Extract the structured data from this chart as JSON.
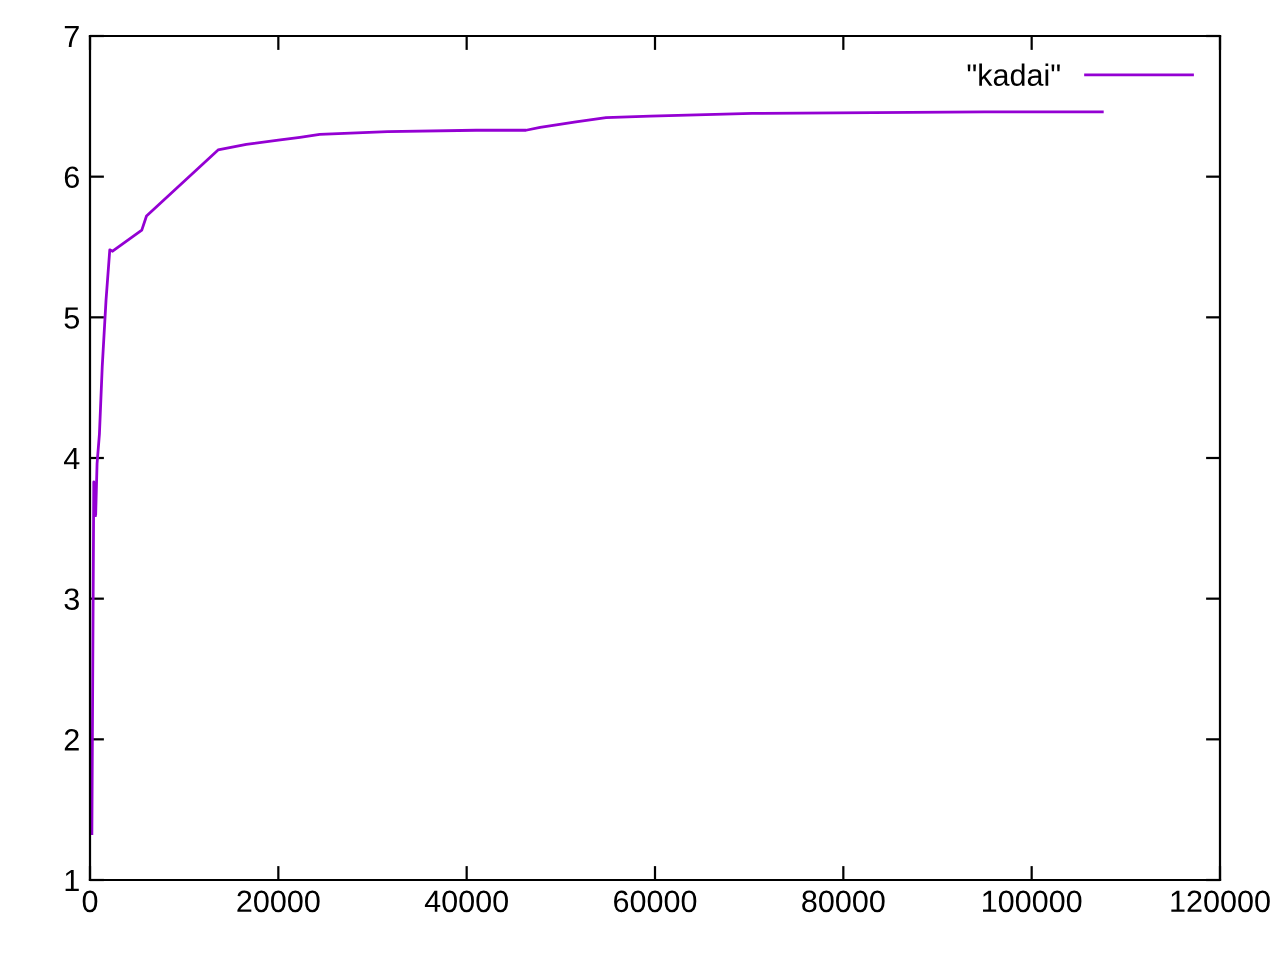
{
  "chart_data": {
    "type": "line",
    "x": [
      200,
      400,
      600,
      750,
      1000,
      1300,
      1700,
      2100,
      2400,
      5500,
      6000,
      13600,
      16600,
      20000,
      22300,
      24400,
      31600,
      41000,
      46300,
      47800,
      51600,
      54800,
      59500,
      70300,
      95000,
      107500
    ],
    "series": [
      {
        "name": "\"kadai\"",
        "color": "#9400d3",
        "values": [
          1.33,
          3.83,
          3.59,
          3.96,
          4.17,
          4.65,
          5.12,
          5.48,
          5.47,
          5.62,
          5.72,
          6.19,
          6.23,
          6.26,
          6.28,
          6.3,
          6.32,
          6.33,
          6.33,
          6.35,
          6.39,
          6.42,
          6.43,
          6.45,
          6.46,
          6.46
        ]
      }
    ],
    "xlim": [
      0,
      120000
    ],
    "ylim": [
      1,
      7
    ],
    "xticks": [
      0,
      20000,
      40000,
      60000,
      80000,
      100000,
      120000
    ],
    "yticks": [
      1,
      2,
      3,
      4,
      5,
      6,
      7
    ],
    "grid": false,
    "legend": "top right",
    "marker": "none",
    "line_style": "solid"
  }
}
